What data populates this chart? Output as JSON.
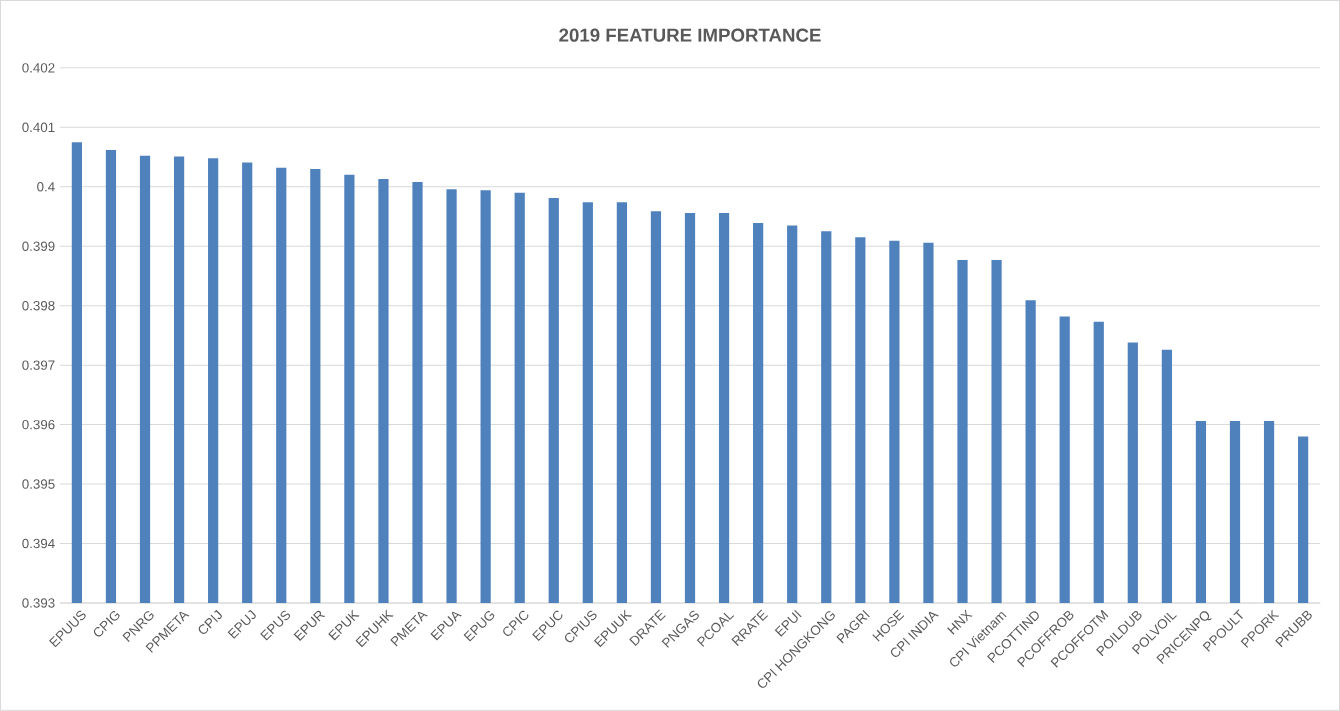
{
  "chart_data": {
    "type": "bar",
    "title": "2019 FEATURE IMPORTANCE",
    "categories": [
      "EPUUS",
      "CPIG",
      "PNRG",
      "PPMETA",
      "CPIJ",
      "EPUJ",
      "EPUS",
      "EPUR",
      "EPUK",
      "EPUHK",
      "PMETA",
      "EPUA",
      "EPUG",
      "CPIC",
      "EPUC",
      "CPIUS",
      "EPUUK",
      "DRATE",
      "PNGAS",
      "PCOAL",
      "RRATE",
      "EPUI",
      "CPI HONGKONG",
      "PAGRI",
      "HOSE",
      "CPI INDIA",
      "HNX",
      "CPI Vietnam",
      "PCOTTIND",
      "PCOFFROB",
      "PCOFFOTM",
      "POILDUB",
      "POLVOIL",
      "PRICENPQ",
      "PPOULT",
      "PPORK",
      "PRUBB"
    ],
    "values": [
      0.40075,
      0.40062,
      0.40052,
      0.40051,
      0.40048,
      0.40041,
      0.40032,
      0.4003,
      0.4002,
      0.40013,
      0.40008,
      0.39996,
      0.39994,
      0.3999,
      0.39981,
      0.39974,
      0.39974,
      0.39959,
      0.39956,
      0.39956,
      0.39939,
      0.39935,
      0.39925,
      0.39915,
      0.39909,
      0.39906,
      0.39877,
      0.39877,
      0.39809,
      0.39782,
      0.39773,
      0.39738,
      0.39726,
      0.39606,
      0.39606,
      0.39606,
      0.3958
    ],
    "color": "#4f81bd",
    "ylim": [
      0.393,
      0.402
    ],
    "yticks": [
      0.393,
      0.394,
      0.395,
      0.396,
      0.397,
      0.398,
      0.399,
      0.4,
      0.401,
      0.402
    ],
    "grid": "y"
  }
}
